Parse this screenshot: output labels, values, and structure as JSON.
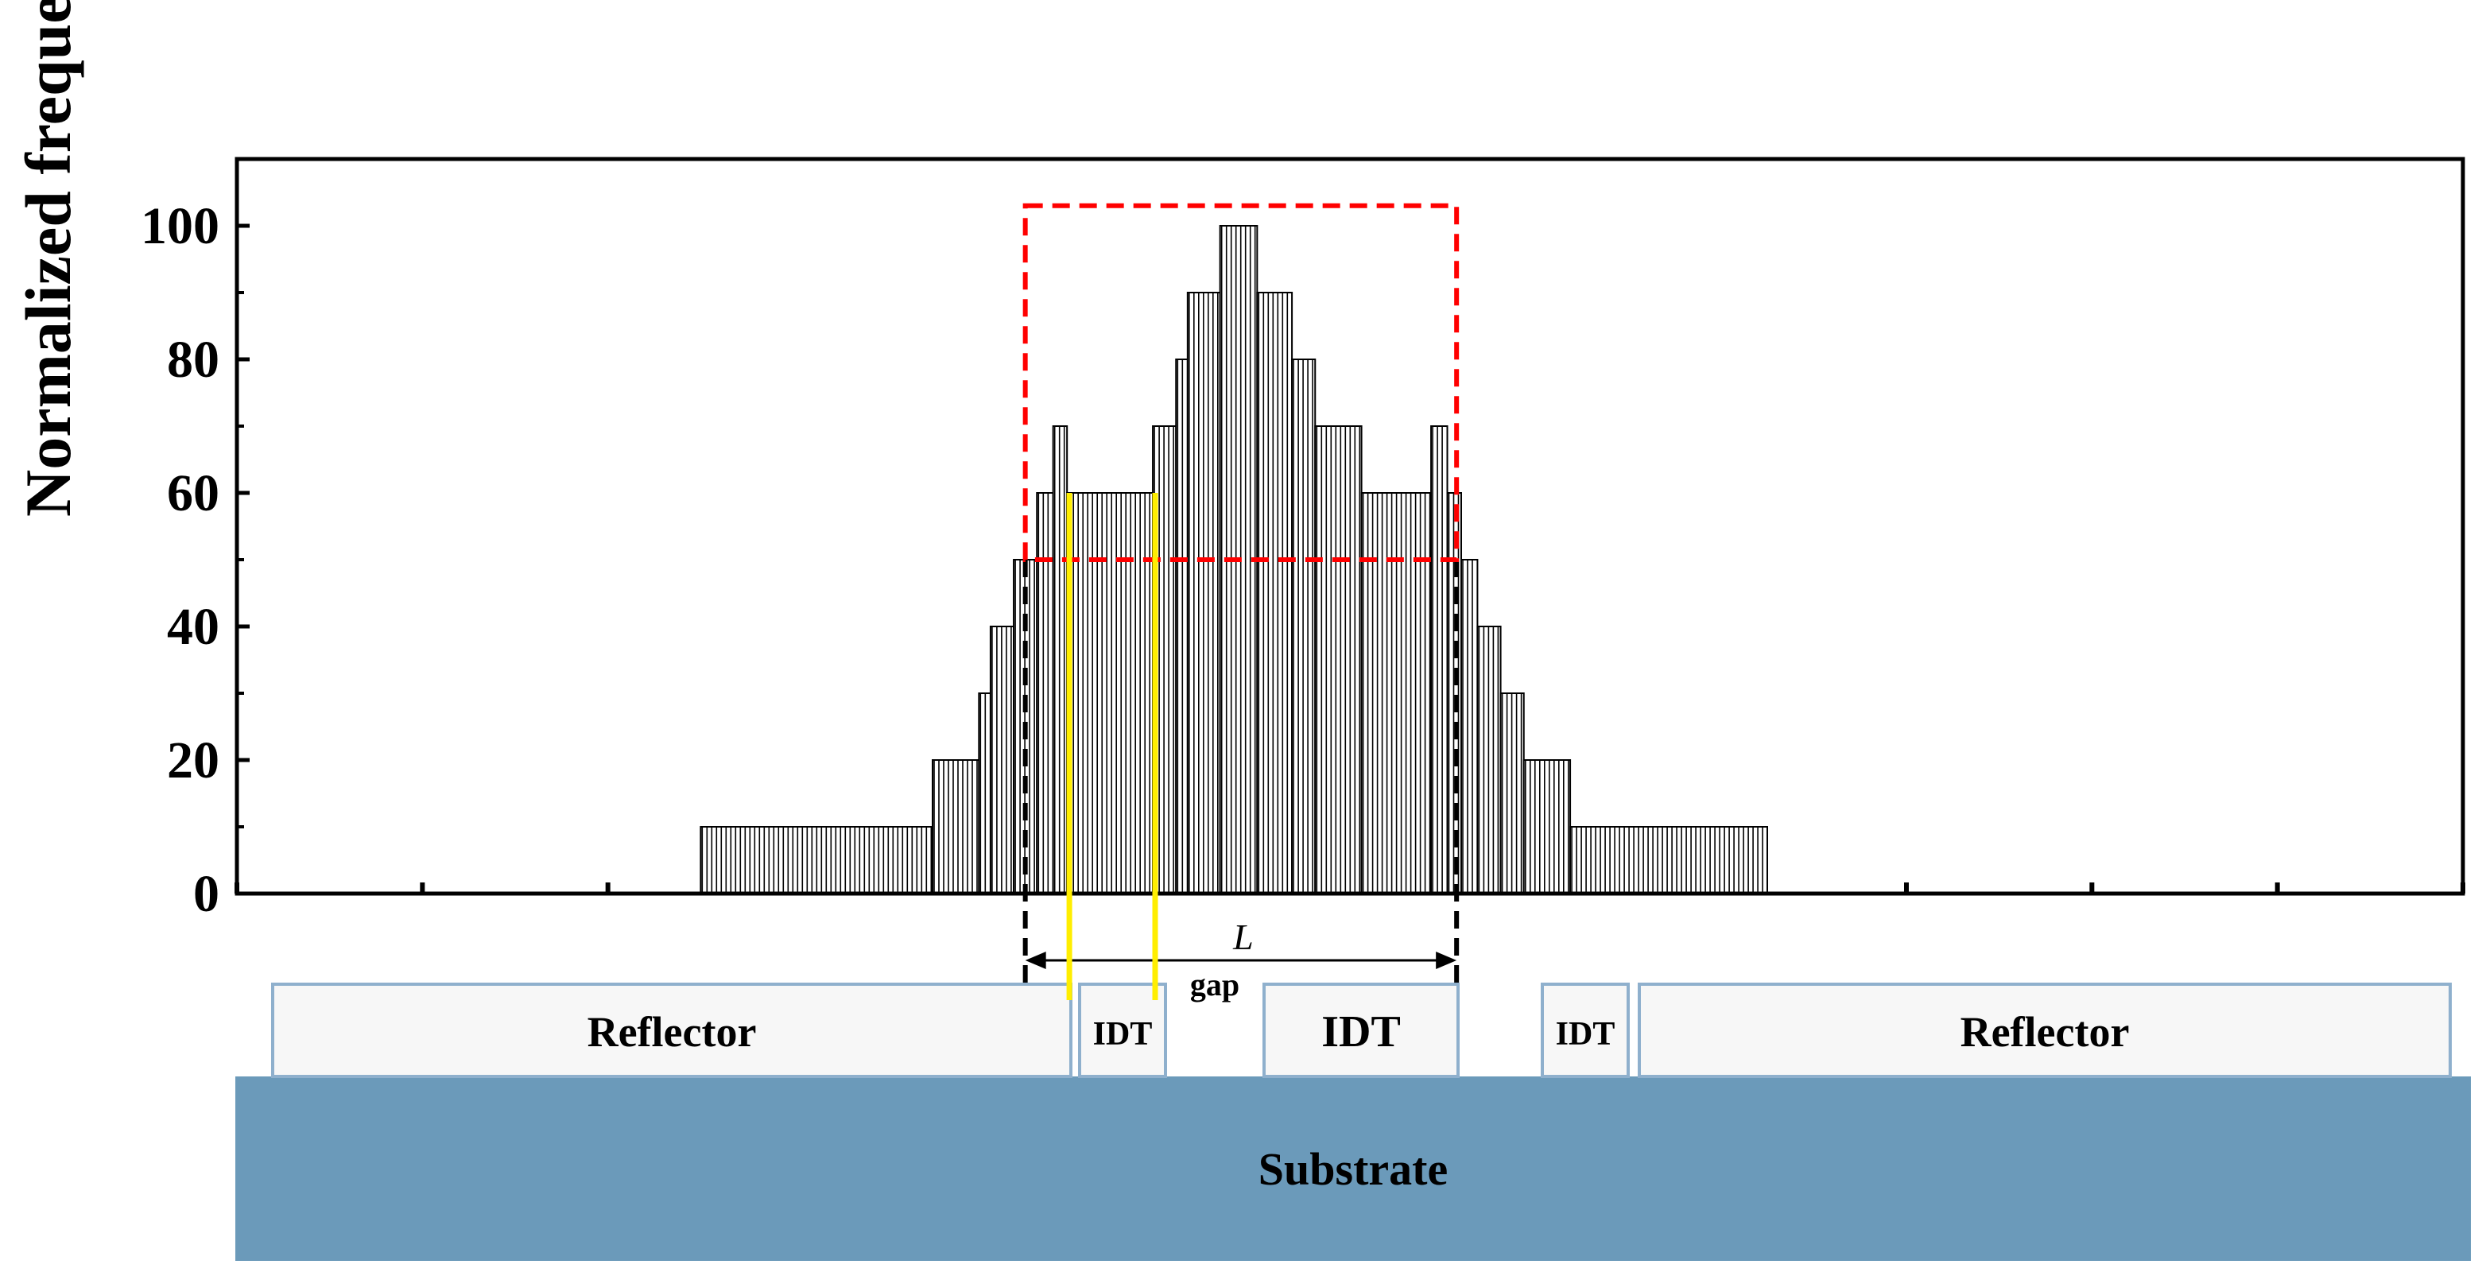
{
  "figure": {
    "y_axis_label": "Normalized frequency offset (%)",
    "gap_label": "gap",
    "length_label": "L"
  },
  "chart_data": {
    "type": "bar",
    "ylabel": "Normalized frequency offset (%)",
    "xlabel": "",
    "ylim": [
      0,
      110
    ],
    "y_ticks": [
      0,
      20,
      40,
      60,
      80,
      100
    ],
    "y_tick_labels": [
      "0",
      "20",
      "40",
      "60",
      "80",
      "100"
    ],
    "x_range": [
      0,
      48
    ],
    "x_ticks": [
      0,
      4,
      8,
      12,
      16,
      20,
      24,
      28,
      32,
      36,
      40,
      44,
      48
    ],
    "steps": [
      {
        "x0": 10,
        "x1": 15,
        "value": 10
      },
      {
        "x0": 15,
        "x1": 16,
        "value": 20
      },
      {
        "x0": 16,
        "x1": 16.25,
        "value": 30
      },
      {
        "x0": 16.25,
        "x1": 16.75,
        "value": 40
      },
      {
        "x0": 16.75,
        "x1": 17.25,
        "value": 50
      },
      {
        "x0": 17.25,
        "x1": 17.6,
        "value": 60
      },
      {
        "x0": 17.6,
        "x1": 17.9,
        "value": 70
      },
      {
        "x0": 17.9,
        "x1": 19.75,
        "value": 60
      },
      {
        "x0": 19.75,
        "x1": 20.25,
        "value": 70
      },
      {
        "x0": 20.25,
        "x1": 20.5,
        "value": 80
      },
      {
        "x0": 20.5,
        "x1": 21.2,
        "value": 90
      },
      {
        "x0": 21.2,
        "x1": 22.0,
        "value": 100
      },
      {
        "x0": 22.0,
        "x1": 22.75,
        "value": 90
      },
      {
        "x0": 22.75,
        "x1": 23.25,
        "value": 80
      },
      {
        "x0": 23.25,
        "x1": 24.25,
        "value": 70
      },
      {
        "x0": 24.25,
        "x1": 25.75,
        "value": 60
      },
      {
        "x0": 25.75,
        "x1": 26.1,
        "value": 70
      },
      {
        "x0": 26.1,
        "x1": 26.4,
        "value": 60
      },
      {
        "x0": 26.4,
        "x1": 26.75,
        "value": 50
      },
      {
        "x0": 26.75,
        "x1": 27.25,
        "value": 40
      },
      {
        "x0": 27.25,
        "x1": 27.75,
        "value": 30
      },
      {
        "x0": 27.75,
        "x1": 28.75,
        "value": 20
      },
      {
        "x0": 28.75,
        "x1": 33.0,
        "value": 10
      }
    ],
    "threshold_box": {
      "x0": 17.0,
      "x1": 26.3,
      "y0": 50,
      "y1": 103
    },
    "dashed_markers_x": [
      17.0,
      26.3
    ],
    "yellow_lines": [
      {
        "x": 17.95,
        "y_top": 60
      },
      {
        "x": 19.8,
        "y_top": 60
      }
    ]
  },
  "device": {
    "components": [
      {
        "label": "Reflector"
      },
      {
        "label": "IDT"
      },
      {
        "label": "IDT"
      },
      {
        "label": "IDT"
      },
      {
        "label": "Reflector"
      }
    ],
    "substrate_label": "Substrate"
  },
  "colors": {
    "axis": "#000000",
    "bar_stroke": "#000000",
    "bar_fill": "#ffffff",
    "threshold_box": "#ff0000",
    "yellow_line": "#ffee00",
    "component_fill": "#f7f7f7",
    "component_border": "#8fb0cd",
    "substrate": "#6b9aba"
  }
}
